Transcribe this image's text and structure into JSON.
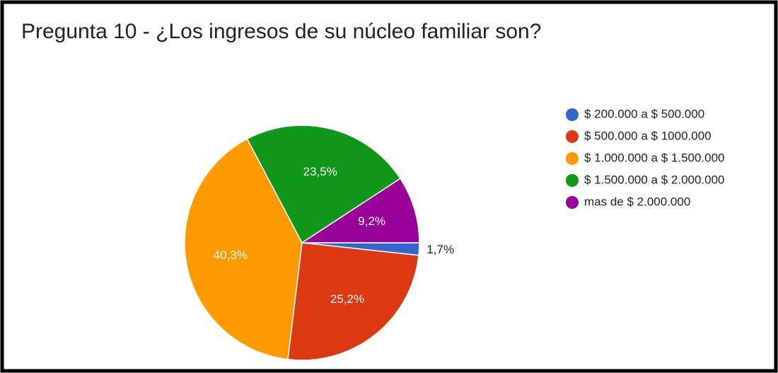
{
  "chart_data": {
    "type": "pie",
    "title": "Pregunta 10 - ¿Los ingresos de su núcleo familiar son?",
    "categories": [
      "$ 200.000 a $ 500.000",
      "$ 500.000 a $ 1000.000",
      "$ 1.000.000 a $ 1.500.000",
      "$ 1.500.000 a $ 2.000.000",
      "mas de $ 2.000.000"
    ],
    "values": [
      1.7,
      25.2,
      40.3,
      23.5,
      9.2
    ],
    "value_labels": [
      "1,7%",
      "25,2%",
      "40,3%",
      "23,5%",
      "9,2%"
    ],
    "colors": [
      "#3366cc",
      "#dc3912",
      "#ff9900",
      "#109618",
      "#990099"
    ],
    "legend": "right"
  }
}
